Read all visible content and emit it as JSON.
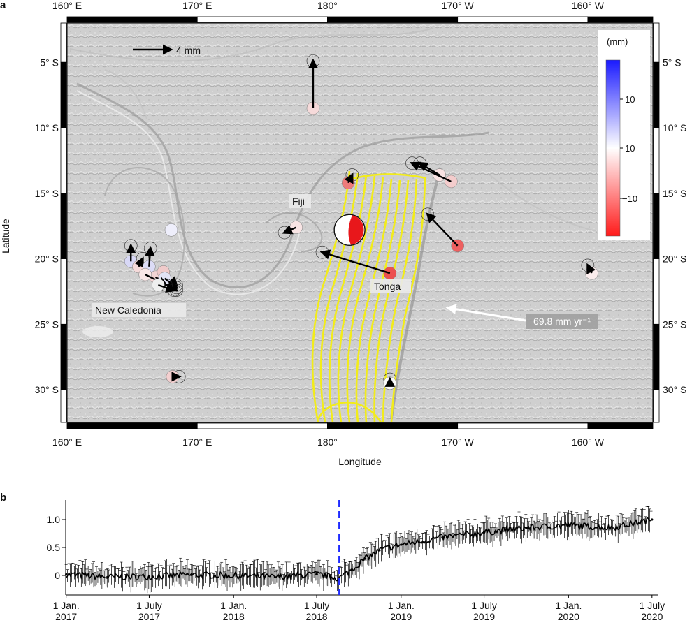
{
  "panel_a": {
    "letter": "a",
    "xlabel": "Longitude",
    "ylabel": "Latitude",
    "lon_ticks": [
      "160° E",
      "170° E",
      "180°",
      "170° W",
      "160° W"
    ],
    "lat_ticks": [
      "5° S",
      "10° S",
      "15° S",
      "20° S",
      "25° S",
      "30° S"
    ],
    "lon_range": [
      160,
      205
    ],
    "lat_range": [
      -32.5,
      -2
    ],
    "scale_arrow_label": "4 mm",
    "plate_rate_label": "69.8 mm yr⁻¹",
    "place_labels": [
      "Fiji",
      "Tonga",
      "New Caledonia"
    ],
    "colorbar": {
      "title": "(mm)",
      "tick_labels": [
        "10",
        "10",
        "−10"
      ],
      "colors": {
        "high": "#1a1aff",
        "mid": "#ffffff",
        "low": "#ff1a1a"
      }
    },
    "stations": [
      {
        "lon": 178.9,
        "lat": -8.5,
        "color": "#f6dada",
        "arrow_dlon": 0.0,
        "arrow_dlat": 3.6
      },
      {
        "lon": 181.6,
        "lat": -14.2,
        "color": "#ee7b7b",
        "arrow_dlon": 0.3,
        "arrow_dlat": 0.6
      },
      {
        "lon": 188.6,
        "lat": -13.6,
        "color": "#f8e2e2",
        "arrow_dlon": -1.5,
        "arrow_dlat": 0.9
      },
      {
        "lon": 189.5,
        "lat": -14.1,
        "color": "#f3cccc",
        "arrow_dlon": -3.0,
        "arrow_dlat": 1.4
      },
      {
        "lon": 177.6,
        "lat": -17.6,
        "color": "#f8e4e4",
        "arrow_dlon": -0.9,
        "arrow_dlat": -0.4
      },
      {
        "lon": 184.8,
        "lat": -21.1,
        "color": "#ec5050",
        "arrow_dlon": -5.2,
        "arrow_dlat": 1.6
      },
      {
        "lon": 190.0,
        "lat": -19.0,
        "color": "#ee6060",
        "arrow_dlon": -2.3,
        "arrow_dlat": 2.4
      },
      {
        "lon": 200.3,
        "lat": -21.1,
        "color": "#faecec",
        "arrow_dlon": -0.3,
        "arrow_dlat": 0.6
      },
      {
        "lon": 168.1,
        "lat": -29.0,
        "color": "#f3cfcf",
        "arrow_dlon": 0.5,
        "arrow_dlat": 0.0
      },
      {
        "lon": 168.0,
        "lat": -17.8,
        "color": "#eeeefb",
        "arrow_dlon": 0.0,
        "arrow_dlat": 0.0
      },
      {
        "lon": 164.9,
        "lat": -20.2,
        "color": "#d8d8f6",
        "arrow_dlon": 0.0,
        "arrow_dlat": 1.2
      },
      {
        "lon": 165.5,
        "lat": -20.6,
        "color": "#f5dada",
        "arrow_dlon": 0.3,
        "arrow_dlat": 0.6
      },
      {
        "lon": 166.3,
        "lat": -20.6,
        "color": "#dcdcf6",
        "arrow_dlon": 0.1,
        "arrow_dlat": 1.4
      },
      {
        "lon": 166.8,
        "lat": -21.4,
        "color": "#f2d4d4",
        "arrow_dlon": 1.6,
        "arrow_dlat": -1.0
      },
      {
        "lon": 167.4,
        "lat": -21.0,
        "color": "#f0caca",
        "arrow_dlon": 1.0,
        "arrow_dlat": -1.0
      },
      {
        "lon": 167.5,
        "lat": -21.5,
        "color": "#e2e2f4",
        "arrow_dlon": 0.9,
        "arrow_dlat": -0.7
      },
      {
        "lon": 166.0,
        "lat": -21.2,
        "color": "#f8e6e6",
        "arrow_dlon": 1.6,
        "arrow_dlat": -0.8
      },
      {
        "lon": 167.0,
        "lat": -22.0,
        "color": "#eeeeee",
        "arrow_dlon": 1.2,
        "arrow_dlat": -0.4
      },
      {
        "lon": 184.8,
        "lat": -29.5,
        "color": "#fafafa",
        "arrow_dlon": 0.0,
        "arrow_dlat": 0.3
      }
    ],
    "focal_mechanism": {
      "lon": 181.7,
      "lat": -17.8
    }
  },
  "chart_data": {
    "type": "line",
    "panel_letter": "b",
    "title": "",
    "xlabel": "",
    "ylabel": "",
    "x_ticks": [
      "1 Jan.\n2017",
      "1 July\n2017",
      "1 Jan.\n2018",
      "1 July\n2018",
      "1 Jan.\n2019",
      "1 July\n2019",
      "1 Jan.\n2020",
      "1 July\n2020"
    ],
    "x_range": [
      "2016-12-31",
      "2020-07-15"
    ],
    "y_ticks": [
      "0",
      "0.5",
      "1.0"
    ],
    "ylim": [
      -0.35,
      1.35
    ],
    "event_date": "2018-08-19",
    "event_line_color": "#1f2bff",
    "series": [
      {
        "values": [
          {
            "x": "2017-01-01",
            "y": 0.02
          },
          {
            "x": "2017-04-01",
            "y": -0.03
          },
          {
            "x": "2017-07-01",
            "y": -0.02
          },
          {
            "x": "2017-10-01",
            "y": 0.01
          },
          {
            "x": "2018-01-01",
            "y": 0.0
          },
          {
            "x": "2018-04-01",
            "y": -0.03
          },
          {
            "x": "2018-07-01",
            "y": 0.02
          },
          {
            "x": "2018-08-19",
            "y": -0.05
          },
          {
            "x": "2018-09-15",
            "y": 0.1
          },
          {
            "x": "2018-10-15",
            "y": 0.3
          },
          {
            "x": "2018-11-15",
            "y": 0.45
          },
          {
            "x": "2019-01-01",
            "y": 0.55
          },
          {
            "x": "2019-04-01",
            "y": 0.68
          },
          {
            "x": "2019-07-01",
            "y": 0.77
          },
          {
            "x": "2019-10-01",
            "y": 0.85
          },
          {
            "x": "2020-01-01",
            "y": 0.9
          },
          {
            "x": "2020-04-01",
            "y": 0.85
          },
          {
            "x": "2020-07-01",
            "y": 1.0
          }
        ]
      }
    ]
  }
}
